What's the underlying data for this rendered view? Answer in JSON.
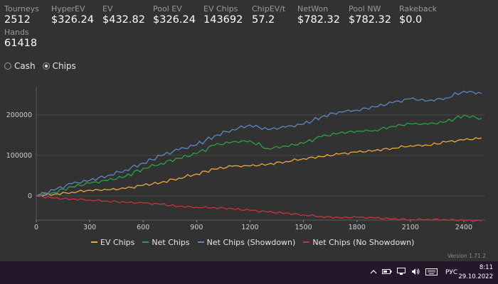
{
  "stats": [
    {
      "label": "Tourneys",
      "value": "2512"
    },
    {
      "label": "HyperEV",
      "value": "$326.24"
    },
    {
      "label": "EV",
      "value": "$432.82"
    },
    {
      "label": "Pool EV",
      "value": "$326.24"
    },
    {
      "label": "EV Chips",
      "value": "143692"
    },
    {
      "label": "ChipEV/t",
      "value": "57.2"
    },
    {
      "label": "NetWon",
      "value": "$782.32"
    },
    {
      "label": "Pool NW",
      "value": "$782.32"
    },
    {
      "label": "Rakeback",
      "value": "$0.0"
    },
    {
      "label": "Hands",
      "value": "61418"
    }
  ],
  "mode": {
    "options": [
      "Cash",
      "Chips"
    ],
    "selected": "Chips"
  },
  "chart_data": {
    "type": "line",
    "x": [
      0,
      100,
      200,
      300,
      400,
      500,
      600,
      700,
      800,
      900,
      1000,
      1100,
      1200,
      1300,
      1400,
      1500,
      1600,
      1700,
      1800,
      1900,
      2000,
      2100,
      2200,
      2300,
      2400,
      2500
    ],
    "xlim": [
      0,
      2520
    ],
    "ylim": [
      -60000,
      270000
    ],
    "yticks": [
      0,
      100000,
      200000
    ],
    "xticks": [
      0,
      300,
      600,
      900,
      1200,
      1500,
      1800,
      2100,
      2400
    ],
    "grid": "horizontal",
    "legend": "bottom-center",
    "series": [
      {
        "name": "EV Chips",
        "color": "#e9a93a",
        "values": [
          0,
          4000,
          9000,
          14000,
          15000,
          18000,
          26000,
          33000,
          44000,
          54000,
          66000,
          73000,
          74000,
          78000,
          85000,
          92000,
          97000,
          103000,
          108000,
          112000,
          118000,
          124000,
          125000,
          133000,
          138000,
          143000
        ]
      },
      {
        "name": "Net Chips",
        "color": "#2ea043",
        "values": [
          0,
          9000,
          22000,
          31000,
          38000,
          48000,
          68000,
          80000,
          93000,
          104000,
          125000,
          133000,
          136000,
          117000,
          123000,
          130000,
          146000,
          155000,
          160000,
          162000,
          172000,
          178000,
          177000,
          183000,
          199000,
          191000
        ]
      },
      {
        "name": "Net Chips (Showdown)",
        "color": "#5b88c0",
        "values": [
          0,
          14000,
          30000,
          38000,
          50000,
          64000,
          81000,
          99000,
          114000,
          126000,
          148000,
          164000,
          175000,
          164000,
          170000,
          177000,
          195000,
          208000,
          212000,
          220000,
          230000,
          240000,
          235000,
          242000,
          259000,
          253000
        ]
      },
      {
        "name": "Net Chips (No Showdown)",
        "color": "#c93340",
        "values": [
          0,
          -6000,
          -8000,
          -10000,
          -13000,
          -16000,
          -18000,
          -21000,
          -26000,
          -28000,
          -29000,
          -32000,
          -36000,
          -40000,
          -43000,
          -47000,
          -51000,
          -54000,
          -53000,
          -55000,
          -57000,
          -59000,
          -58000,
          -59000,
          -61000,
          -62000
        ]
      }
    ]
  },
  "version": "Version 1.71.2",
  "taskbar": {
    "tray_icons": [
      "chevron-up-icon",
      "battery-icon",
      "network-icon",
      "volume-icon",
      "keyboard-icon"
    ],
    "language": "РУС",
    "time": "8:11",
    "date": "29.10.2022"
  }
}
